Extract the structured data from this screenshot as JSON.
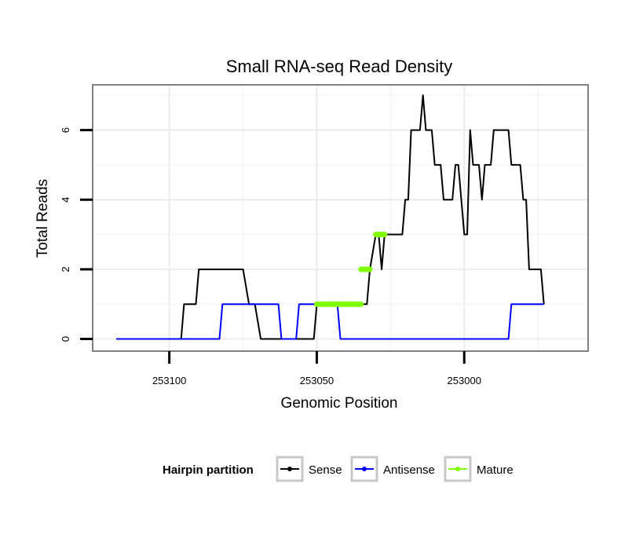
{
  "chart_data": {
    "type": "line",
    "title": "Small RNA-seq Read Density",
    "xlabel": "Genomic Position",
    "ylabel": "Total Reads",
    "x_reversed": true,
    "xlim": [
      253126,
      252958
    ],
    "ylim": [
      -0.35,
      7.3
    ],
    "xticks": [
      253100,
      253050,
      253000
    ],
    "xtick_labels": [
      "253100",
      "253050",
      "253000"
    ],
    "yticks": [
      0,
      2,
      4,
      6
    ],
    "ytick_labels": [
      "0",
      "2",
      "4",
      "6"
    ],
    "grid": true,
    "legend": {
      "title": "Hairpin partition",
      "position": "bottom",
      "entries": [
        {
          "label": "Sense",
          "color": "#000000"
        },
        {
          "label": "Antisense",
          "color": "#0000ff"
        },
        {
          "label": "Mature",
          "color": "#7fff00"
        }
      ]
    },
    "series": [
      {
        "name": "Sense",
        "color": "#000000",
        "points": [
          [
            253118,
            0
          ],
          [
            253096,
            0
          ],
          [
            253095,
            1
          ],
          [
            253091,
            1
          ],
          [
            253090,
            2
          ],
          [
            253089,
            2
          ],
          [
            253075,
            2
          ],
          [
            253073,
            1
          ],
          [
            253071,
            1
          ],
          [
            253069,
            0
          ],
          [
            253051,
            0
          ],
          [
            253050,
            1
          ],
          [
            253033,
            1
          ],
          [
            253032,
            2
          ],
          [
            253030,
            3
          ],
          [
            253029,
            3
          ],
          [
            253028,
            2
          ],
          [
            253027,
            3
          ],
          [
            253021,
            3
          ],
          [
            253020,
            4
          ],
          [
            253019,
            4
          ],
          [
            253018,
            6
          ],
          [
            253015,
            6
          ],
          [
            253014,
            7
          ],
          [
            253013,
            6
          ],
          [
            253011,
            6
          ],
          [
            253010,
            5
          ],
          [
            253008,
            5
          ],
          [
            253007,
            4
          ],
          [
            253004,
            4
          ],
          [
            253003,
            5
          ],
          [
            253002,
            5
          ],
          [
            253001,
            4
          ],
          [
            253000,
            3
          ],
          [
            252999,
            3
          ],
          [
            252998,
            6
          ],
          [
            252997,
            5
          ],
          [
            252995,
            5
          ],
          [
            252994,
            4
          ],
          [
            252993,
            5
          ],
          [
            252991,
            5
          ],
          [
            252990,
            6
          ],
          [
            252985,
            6
          ],
          [
            252984,
            5
          ],
          [
            252981,
            5
          ],
          [
            252980,
            4
          ],
          [
            252979,
            4
          ],
          [
            252978,
            2
          ],
          [
            252974,
            2
          ],
          [
            252973,
            1
          ]
        ]
      },
      {
        "name": "Antisense",
        "color": "#0000ff",
        "points": [
          [
            253118,
            0
          ],
          [
            253083,
            0
          ],
          [
            253082,
            1
          ],
          [
            253063,
            1
          ],
          [
            253062,
            0
          ],
          [
            253057,
            0
          ],
          [
            253056,
            1
          ],
          [
            253043,
            1
          ],
          [
            253042,
            0
          ],
          [
            252985,
            0
          ],
          [
            252984,
            1
          ],
          [
            252973,
            1
          ]
        ]
      },
      {
        "name": "Mature",
        "color": "#7fff00",
        "segments": [
          [
            [
              253050,
              1
            ],
            [
              253035,
              1
            ]
          ],
          [
            [
              253035,
              2
            ],
            [
              253032,
              2
            ]
          ],
          [
            [
              253030,
              3
            ],
            [
              253027,
              3
            ]
          ]
        ]
      }
    ]
  }
}
